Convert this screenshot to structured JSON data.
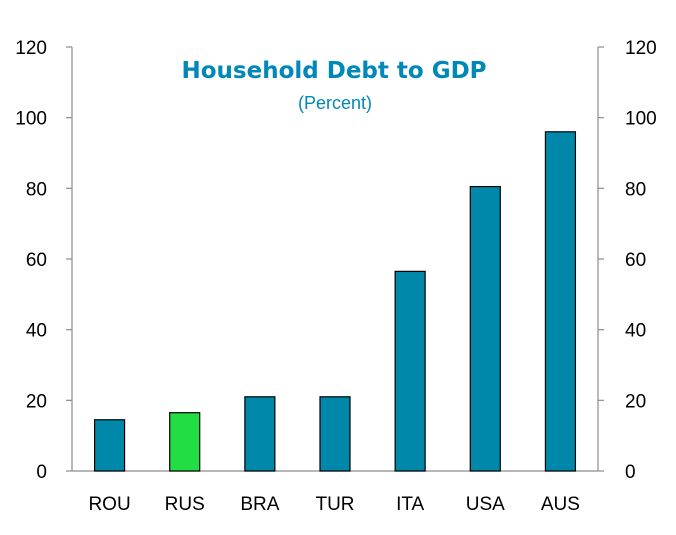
{
  "chart_data": {
    "type": "bar",
    "title": "Household Debt to GDP",
    "subtitle": "(Percent)",
    "categories": [
      "ROU",
      "RUS",
      "BRA",
      "TUR",
      "ITA",
      "USA",
      "AUS"
    ],
    "values": [
      14.5,
      16.5,
      21,
      21,
      56.5,
      80.5,
      96
    ],
    "highlight_category": "RUS",
    "ylim": [
      0,
      120
    ],
    "yticks": [
      0,
      20,
      40,
      60,
      80,
      100,
      120
    ],
    "ytick_labels": [
      "0",
      "20",
      "40",
      "60",
      "80",
      "100",
      "120"
    ],
    "y_axis_sides": "left and right",
    "grid": false,
    "xlabel": "",
    "ylabel": ""
  },
  "colors": {
    "bar": "#0088aa",
    "highlight_bar": "#22dd44",
    "bar_outline": "#000000",
    "title": "#0088b8",
    "subtitle": "#0088b8",
    "axis": "#8c8c8c"
  }
}
